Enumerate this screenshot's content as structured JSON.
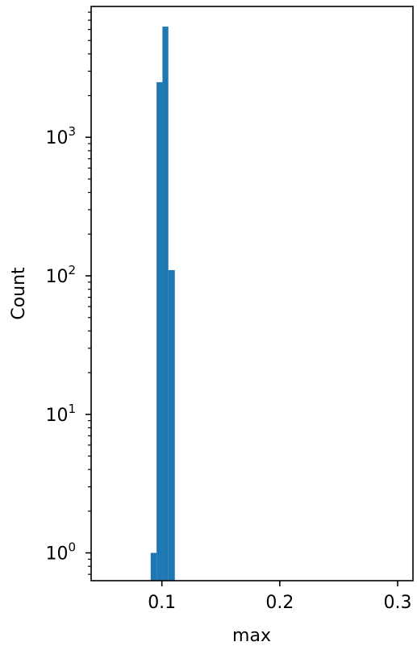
{
  "chart_data": {
    "type": "bar",
    "title": "",
    "xlabel": "max",
    "ylabel": "Count",
    "yscale": "log",
    "xlim": [
      0.04,
      0.313
    ],
    "ylim": [
      0.63,
      8800
    ],
    "grid": false,
    "bar_color": "#1f77b4",
    "bins": [
      {
        "x0": 0.0905,
        "x1": 0.0955,
        "count": 1
      },
      {
        "x0": 0.0955,
        "x1": 0.1005,
        "count": 2500
      },
      {
        "x0": 0.1005,
        "x1": 0.1055,
        "count": 6300
      },
      {
        "x0": 0.1055,
        "x1": 0.111,
        "count": 110
      }
    ],
    "xticks": [
      {
        "value": 0.1,
        "label": "0.1"
      },
      {
        "value": 0.2,
        "label": "0.2"
      },
      {
        "value": 0.3,
        "label": "0.3"
      }
    ],
    "yticks": [
      {
        "value": 1,
        "base": "10",
        "exp": "0"
      },
      {
        "value": 10,
        "base": "10",
        "exp": "1"
      },
      {
        "value": 100,
        "base": "10",
        "exp": "2"
      },
      {
        "value": 1000,
        "base": "10",
        "exp": "3"
      }
    ]
  }
}
